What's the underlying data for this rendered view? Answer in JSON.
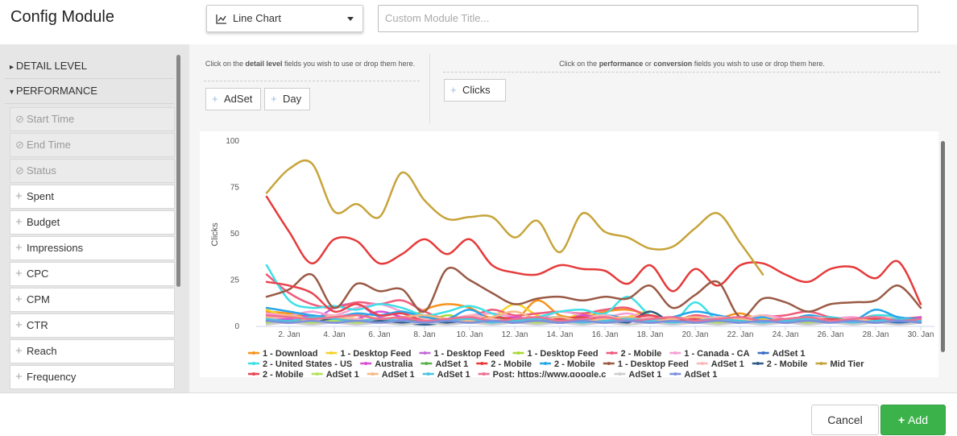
{
  "header": {
    "title": "Config Module",
    "chart_type": "Line Chart",
    "title_placeholder": "Custom Module Title..."
  },
  "sidebar": {
    "sections": [
      "DETAIL LEVEL",
      "PERFORMANCE"
    ],
    "disabled_fields": [
      "Start Time",
      "End Time",
      "Status"
    ],
    "fields": [
      "Spent",
      "Budget",
      "Impressions",
      "CPC",
      "CPM",
      "CTR",
      "Reach",
      "Frequency"
    ]
  },
  "dimensions": {
    "hint": [
      "Click on the ",
      "detail level",
      " fields you wish to use or drop them here."
    ],
    "chips": [
      "AdSet",
      "Day"
    ]
  },
  "metrics": {
    "hint": [
      "Click on the ",
      "performance",
      " or ",
      "conversion",
      " fields you wish to use or drop them here."
    ],
    "chips": [
      "Clicks"
    ]
  },
  "chart_data": {
    "type": "line",
    "y_label": "Clicks",
    "categories": [
      null,
      "2. Jan",
      null,
      "4. Jan",
      null,
      "6. Jan",
      null,
      "8. Jan",
      null,
      "10. Jan",
      null,
      "12. Jan",
      null,
      "14. Jan",
      null,
      "16. Jan",
      null,
      "18. Jan",
      null,
      "20. Jan",
      null,
      "22. Jan",
      null,
      "24. Jan",
      null,
      "26. Jan",
      null,
      "28. Jan",
      null,
      "30. Jan"
    ],
    "ylim": [
      0,
      100
    ],
    "yticks": [
      0,
      25,
      50,
      75,
      100
    ],
    "series": [
      {
        "name": "1 - Download",
        "color": "#f7931e",
        "values": [
          8,
          7,
          5,
          6,
          4,
          3,
          2,
          9,
          12,
          10,
          4,
          3,
          14,
          6,
          5,
          8,
          9,
          6,
          3,
          2,
          4,
          7,
          3,
          2,
          2,
          3,
          2,
          2,
          3,
          2
        ]
      },
      {
        "name": "1 - Desktop Feed",
        "color": "#f5d327",
        "values": [
          9,
          5,
          4,
          3,
          6,
          4,
          3,
          2,
          4,
          3,
          5,
          12,
          6,
          3,
          7,
          4,
          5,
          8,
          2,
          2,
          3,
          2,
          4,
          3,
          2,
          3,
          4,
          3,
          2,
          3
        ]
      },
      {
        "name": "1 - Desktop Feed",
        "color": "#c36bd9",
        "values": [
          6,
          4,
          3,
          10,
          12,
          5,
          4,
          3,
          2,
          5,
          3,
          4,
          2,
          3,
          4,
          3,
          2,
          6,
          2,
          3,
          5,
          4,
          3,
          2,
          5,
          4,
          3,
          6,
          3,
          4
        ]
      },
      {
        "name": "1 - Desktop Feed",
        "color": "#a8d935",
        "values": [
          4,
          3,
          2,
          3,
          2,
          4,
          3,
          2,
          6,
          3,
          2,
          3,
          4,
          3,
          2,
          3,
          4,
          2,
          3,
          2,
          4,
          3,
          2,
          3,
          2,
          3,
          4,
          2,
          3,
          2
        ]
      },
      {
        "name": "2 - Mobile",
        "color": "#ef5b7a",
        "values": [
          28,
          18,
          12,
          10,
          13,
          12,
          14,
          8,
          4,
          5,
          9,
          6,
          7,
          8,
          7,
          9,
          10,
          5,
          3,
          6,
          4,
          3,
          5,
          6,
          8,
          5,
          4,
          3,
          4,
          5
        ]
      },
      {
        "name": "1 - Canada - CA",
        "color": "#f59fd6",
        "values": [
          7,
          6,
          8,
          6,
          10,
          12,
          8,
          5,
          4,
          6,
          7,
          5,
          4,
          8,
          6,
          5,
          7,
          4,
          3,
          5,
          4,
          3,
          6,
          4,
          3,
          4,
          5,
          3,
          4,
          3
        ]
      },
      {
        "name": "AdSet 1",
        "color": "#3a6fc4",
        "values": [
          2,
          2,
          3,
          2,
          2,
          3,
          2,
          2,
          2,
          3,
          2,
          2,
          3,
          2,
          2,
          2,
          3,
          2,
          2,
          2,
          2,
          3,
          2,
          2,
          2,
          2,
          3,
          2,
          2,
          2
        ]
      },
      {
        "name": "2 - United States - US",
        "color": "#3ee0e6",
        "values": [
          33,
          14,
          10,
          11,
          9,
          12,
          10,
          6,
          8,
          11,
          7,
          3,
          5,
          8,
          9,
          7,
          16,
          6,
          2,
          13,
          3,
          2,
          5,
          3,
          4,
          5,
          3,
          6,
          5,
          2
        ]
      },
      {
        "name": "Australia",
        "color": "#d94fd6",
        "values": [
          5,
          4,
          6,
          3,
          4,
          8,
          5,
          2,
          3,
          4,
          3,
          5,
          3,
          2,
          6,
          4,
          3,
          2,
          4,
          3,
          2,
          5,
          3,
          4,
          2,
          3,
          2,
          4,
          3,
          5
        ]
      },
      {
        "name": "AdSet 1",
        "color": "#5ab24a",
        "values": [
          3,
          2,
          4,
          3,
          2,
          3,
          2,
          5,
          3,
          2,
          4,
          3,
          2,
          3,
          5,
          2,
          3,
          2,
          4,
          3,
          2,
          3,
          2,
          3,
          2,
          4,
          3,
          2,
          3,
          2
        ]
      },
      {
        "name": "2 - Mobile",
        "color": "#e63a3a",
        "values": [
          70,
          51,
          34,
          47,
          46,
          34,
          39,
          47,
          39,
          47,
          33,
          29,
          28,
          33,
          31,
          30,
          23,
          33,
          19,
          31,
          22,
          33,
          34,
          28,
          24,
          31,
          32,
          26,
          35,
          12
        ]
      },
      {
        "name": "2 - Mobile",
        "color": "#27a6ea",
        "values": [
          10,
          8,
          6,
          5,
          7,
          6,
          8,
          5,
          4,
          9,
          3,
          2,
          4,
          5,
          3,
          6,
          4,
          3,
          5,
          8,
          6,
          4,
          5,
          3,
          6,
          4,
          3,
          9,
          5,
          4
        ]
      },
      {
        "name": "1 - Desktop Feed",
        "color": "#9a5a45",
        "values": [
          16,
          20,
          28,
          10,
          23,
          19,
          20,
          8,
          31,
          25,
          18,
          12,
          15,
          16,
          14,
          16,
          15,
          22,
          10,
          17,
          24,
          5,
          15,
          13,
          8,
          12,
          13,
          14,
          22,
          10
        ]
      },
      {
        "name": "AdSet 1",
        "color": "#f9b8b8",
        "values": [
          4,
          5,
          3,
          6,
          4,
          3,
          5,
          4,
          2,
          6,
          4,
          3,
          5,
          3,
          4,
          6,
          3,
          5,
          4,
          3,
          5,
          4,
          6,
          3,
          5,
          4,
          3,
          5,
          4,
          3
        ]
      },
      {
        "name": "2 - Mobile",
        "color": "#2f5c87",
        "values": [
          3,
          2,
          2,
          4,
          2,
          3,
          2,
          1,
          2,
          3,
          2,
          2,
          3,
          2,
          2,
          3,
          2,
          8,
          2,
          3,
          2,
          2,
          3,
          2,
          2,
          3,
          2,
          2,
          3,
          2
        ]
      },
      {
        "name": "Mid Tier",
        "color": "#c7a43a",
        "values": [
          72,
          85,
          88,
          62,
          66,
          59,
          83,
          68,
          58,
          59,
          59,
          48,
          57,
          40,
          61,
          51,
          48,
          42,
          43,
          53,
          61,
          45,
          28,
          null,
          null,
          null,
          null,
          null,
          null,
          null
        ]
      },
      {
        "name": "2 - Mobile",
        "color": "#e8434e",
        "values": [
          24,
          22,
          18,
          8,
          12,
          6,
          7,
          3,
          4,
          3,
          5,
          4,
          3,
          4,
          5,
          3,
          4,
          6,
          3,
          4,
          3,
          4,
          3,
          4,
          3,
          4,
          3,
          4,
          3,
          4
        ]
      },
      {
        "name": "AdSet 1",
        "color": "#b3e05a",
        "values": [
          2,
          3,
          2,
          3,
          2,
          2,
          3,
          2,
          3,
          2,
          2,
          3,
          2,
          3,
          2,
          2,
          3,
          2,
          3,
          2,
          2,
          3,
          2,
          3,
          2,
          2,
          3,
          2,
          3,
          2
        ]
      },
      {
        "name": "AdSet 1",
        "color": "#f7b982",
        "values": [
          5,
          6,
          4,
          5,
          3,
          4,
          5,
          6,
          4,
          3,
          5,
          8,
          4,
          5,
          3,
          4,
          5,
          3,
          4,
          5,
          3,
          4,
          3,
          4,
          5,
          3,
          4,
          3,
          4,
          3
        ]
      },
      {
        "name": "AdSet 1",
        "color": "#4ac4e0",
        "values": [
          4,
          3,
          5,
          4,
          3,
          4,
          3,
          2,
          3,
          4,
          2,
          3,
          4,
          3,
          2,
          3,
          4,
          3,
          2,
          3,
          4,
          3,
          2,
          3,
          4,
          3,
          2,
          3,
          4,
          3
        ]
      },
      {
        "name": "Post: https://www.google.c",
        "color": "#ef6f8f",
        "values": [
          6,
          5,
          4,
          5,
          6,
          4,
          5,
          3,
          4,
          5,
          3,
          4,
          5,
          3,
          4,
          5,
          3,
          4,
          5,
          3,
          4,
          5,
          3,
          4,
          5,
          3,
          4,
          5,
          3,
          4
        ]
      },
      {
        "name": "AdSet 1",
        "color": "#cccccc",
        "values": [
          1,
          2,
          1,
          2,
          1,
          2,
          1,
          2,
          1,
          2,
          1,
          2,
          1,
          2,
          1,
          2,
          1,
          2,
          1,
          2,
          1,
          2,
          1,
          2,
          1,
          2,
          1,
          2,
          1,
          2
        ]
      },
      {
        "name": "AdSet 1",
        "color": "#7d8fe0",
        "values": [
          3,
          2,
          3,
          2,
          3,
          2,
          3,
          2,
          3,
          2,
          3,
          2,
          3,
          2,
          3,
          2,
          3,
          2,
          3,
          2,
          3,
          2,
          3,
          2,
          3,
          2,
          3,
          2,
          3,
          2
        ]
      }
    ]
  },
  "footer": {
    "cancel": "Cancel",
    "add": "Add"
  }
}
